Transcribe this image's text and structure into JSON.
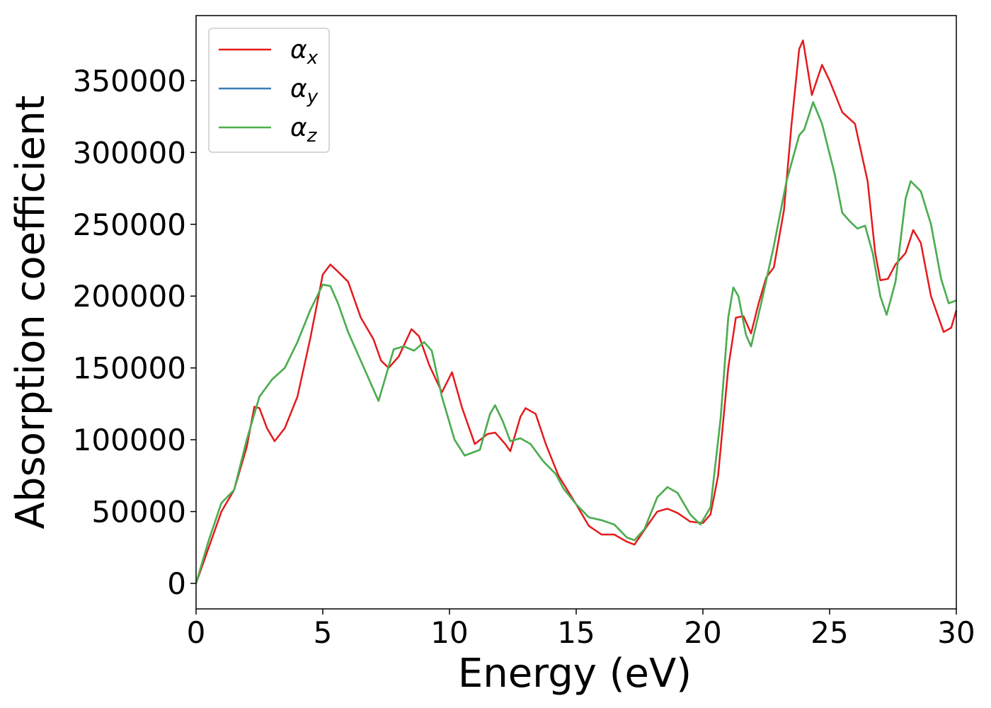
{
  "chart_data": {
    "type": "line",
    "xlabel": "Energy (eV)",
    "ylabel": "Absorption coefficient",
    "xlim": [
      0,
      30
    ],
    "ylim": [
      -17750,
      395300
    ],
    "xticks": [
      0,
      5,
      10,
      15,
      20,
      25,
      30
    ],
    "yticks": [
      0,
      50000,
      100000,
      150000,
      200000,
      250000,
      300000,
      350000
    ],
    "legend": "upper left",
    "series": [
      {
        "name": "αx",
        "color": "#e41a1c",
        "x": [
          0,
          0.5,
          1,
          1.5,
          2,
          2.3,
          2.5,
          2.8,
          3.1,
          3.5,
          4,
          4.5,
          5,
          5.3,
          5.6,
          6,
          6.5,
          7,
          7.3,
          7.6,
          8,
          8.5,
          8.8,
          9.2,
          9.7,
          10.1,
          10.5,
          11,
          11.5,
          11.8,
          12.2,
          12.4,
          12.8,
          13,
          13.4,
          13.8,
          14.3,
          15,
          15.5,
          16,
          16.5,
          17,
          17.3,
          17.8,
          18.2,
          18.6,
          19,
          19.5,
          20,
          20.3,
          20.6,
          21,
          21.3,
          21.6,
          21.9,
          22.2,
          22.5,
          22.8,
          23.2,
          23.5,
          23.8,
          23.95,
          24.3,
          24.7,
          25,
          25.5,
          26,
          26.5,
          26.8,
          27,
          27.3,
          27.6,
          28,
          28.3,
          28.6,
          29,
          29.5,
          29.8,
          30
        ],
        "values": [
          0,
          25000,
          50000,
          65000,
          95000,
          123000,
          122000,
          108000,
          99000,
          108000,
          130000,
          170000,
          215000,
          222000,
          217000,
          210000,
          185000,
          170000,
          155000,
          150000,
          158000,
          177000,
          172000,
          152000,
          133000,
          147000,
          122000,
          97000,
          104000,
          105000,
          97000,
          92000,
          116000,
          122000,
          118000,
          97000,
          75000,
          55000,
          40000,
          34000,
          34000,
          29000,
          27000,
          40000,
          50000,
          52000,
          49000,
          43000,
          42000,
          48000,
          75000,
          150000,
          185000,
          186000,
          174000,
          195000,
          213000,
          220000,
          260000,
          320000,
          372000,
          378000,
          340000,
          361000,
          350000,
          328000,
          320000,
          280000,
          230000,
          211000,
          212000,
          222000,
          230000,
          246000,
          237000,
          200000,
          175000,
          178000,
          190000
        ]
      },
      {
        "name": "αy",
        "color": "#377eb8",
        "x": [
          0,
          0.5,
          1,
          1.5,
          2,
          2.5,
          3,
          3.5,
          4,
          4.5,
          5,
          5.3,
          5.6,
          6,
          6.5,
          7,
          7.2,
          7.5,
          7.8,
          8.2,
          8.6,
          9,
          9.3,
          9.7,
          10.2,
          10.6,
          11.2,
          11.6,
          11.8,
          12.1,
          12.4,
          12.8,
          13.2,
          13.7,
          14.2,
          14.5,
          15,
          15.5,
          16,
          16.5,
          17,
          17.3,
          17.7,
          18.2,
          18.6,
          19,
          19.5,
          19.9,
          20.3,
          20.7,
          21,
          21.2,
          21.4,
          21.7,
          21.9,
          22.3,
          22.8,
          23.3,
          23.8,
          24,
          24.35,
          24.7,
          25.2,
          25.5,
          25.8,
          26.1,
          26.4,
          26.7,
          27,
          27.25,
          27.6,
          28,
          28.2,
          28.6,
          29,
          29.4,
          29.7,
          30
        ],
        "values": [
          0,
          30000,
          56000,
          65000,
          100000,
          130000,
          142000,
          150000,
          168000,
          190000,
          208000,
          207000,
          195000,
          175000,
          155000,
          135000,
          127000,
          145000,
          163000,
          165000,
          162000,
          168000,
          162000,
          130000,
          100000,
          89000,
          93000,
          118000,
          124000,
          113000,
          99000,
          101000,
          97000,
          85000,
          76000,
          66000,
          55000,
          46000,
          44000,
          41000,
          32000,
          30000,
          38000,
          60000,
          67000,
          63000,
          48000,
          41000,
          53000,
          115000,
          185000,
          206000,
          200000,
          173000,
          165000,
          195000,
          235000,
          280000,
          312000,
          316000,
          335000,
          320000,
          285000,
          258000,
          252000,
          247000,
          249000,
          230000,
          200000,
          187000,
          210000,
          268000,
          280000,
          273000,
          250000,
          212000,
          195000,
          197000
        ]
      },
      {
        "name": "αz",
        "color": "#4daf4a",
        "x": [
          0,
          0.5,
          1,
          1.5,
          2,
          2.5,
          3,
          3.5,
          4,
          4.5,
          5,
          5.3,
          5.6,
          6,
          6.5,
          7,
          7.2,
          7.5,
          7.8,
          8.2,
          8.6,
          9,
          9.3,
          9.7,
          10.2,
          10.6,
          11.2,
          11.6,
          11.8,
          12.1,
          12.4,
          12.8,
          13.2,
          13.7,
          14.2,
          14.5,
          15,
          15.5,
          16,
          16.5,
          17,
          17.3,
          17.7,
          18.2,
          18.6,
          19,
          19.5,
          19.9,
          20.3,
          20.7,
          21,
          21.2,
          21.4,
          21.7,
          21.9,
          22.3,
          22.8,
          23.3,
          23.8,
          24,
          24.35,
          24.7,
          25.2,
          25.5,
          25.8,
          26.1,
          26.4,
          26.7,
          27,
          27.25,
          27.6,
          28,
          28.2,
          28.6,
          29,
          29.4,
          29.7,
          30
        ],
        "values": [
          0,
          30000,
          56000,
          65000,
          100000,
          130000,
          142000,
          150000,
          168000,
          190000,
          208000,
          207000,
          195000,
          175000,
          155000,
          135000,
          127000,
          145000,
          163000,
          165000,
          162000,
          168000,
          162000,
          130000,
          100000,
          89000,
          93000,
          118000,
          124000,
          113000,
          99000,
          101000,
          97000,
          85000,
          76000,
          66000,
          55000,
          46000,
          44000,
          41000,
          32000,
          30000,
          38000,
          60000,
          67000,
          63000,
          48000,
          41000,
          53000,
          115000,
          185000,
          206000,
          200000,
          173000,
          165000,
          195000,
          235000,
          280000,
          312000,
          316000,
          335000,
          320000,
          285000,
          258000,
          252000,
          247000,
          249000,
          230000,
          200000,
          187000,
          210000,
          268000,
          280000,
          273000,
          250000,
          212000,
          195000,
          197000
        ]
      }
    ]
  }
}
